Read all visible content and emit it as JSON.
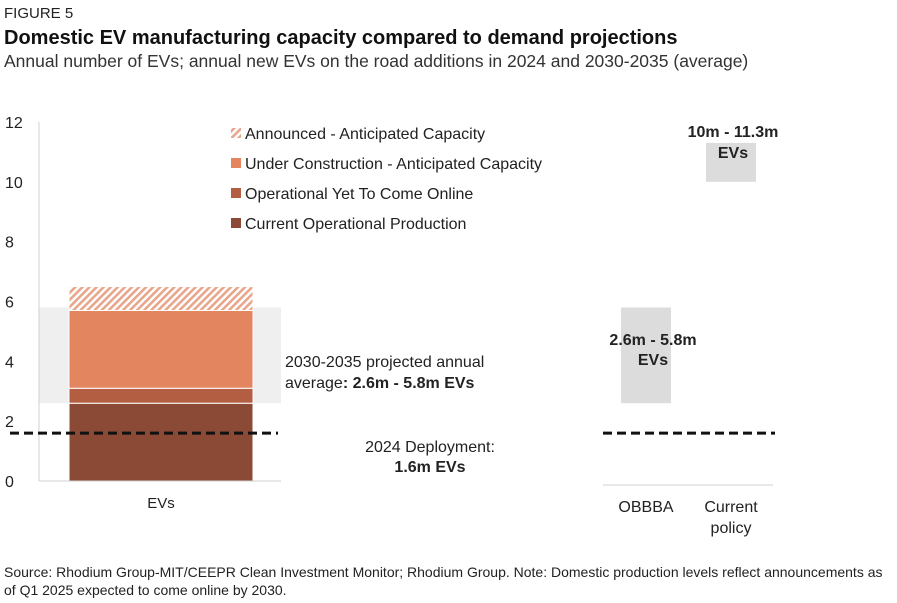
{
  "figure_label": "FIGURE 5",
  "title": "Domestic EV manufacturing capacity compared to demand projections",
  "subtitle": "Annual number of EVs; annual new EVs on the road additions in 2024 and 2030-2035 (average)",
  "source": "Source: Rhodium Group-MIT/CEEPR Clean Investment Monitor; Rhodium Group. Note: Domestic production levels reflect announcements as of Q1 2025 expected to come online by 2030.",
  "colors": {
    "current": "#8b4a36",
    "yet_to_come": "#b35e42",
    "under_construction": "#e3855f",
    "announced": "#e8a68c",
    "band": "#efefef",
    "range_box": "#dcdcdc"
  },
  "chart_data": [
    {
      "type": "bar",
      "stacked": true,
      "categories": [
        "EVs"
      ],
      "ylim": [
        0,
        12
      ],
      "yticks": [
        0,
        2,
        4,
        6,
        8,
        10,
        12
      ],
      "ytick_labels": [
        "0",
        "2",
        "4",
        "6",
        "8",
        "10",
        "12"
      ],
      "grid": false,
      "legend_position": "top-right",
      "series": [
        {
          "name": "Current Operational Production",
          "values": [
            2.6
          ],
          "color": "#8b4a36"
        },
        {
          "name": "Operational Yet To Come Online",
          "values": [
            0.5
          ],
          "color": "#b35e42"
        },
        {
          "name": "Under Construction - Anticipated Capacity",
          "values": [
            2.6
          ],
          "color": "#e3855f"
        },
        {
          "name": "Announced - Anticipated Capacity",
          "values": [
            0.8
          ],
          "color": "#e8a68c",
          "pattern": "hatched"
        }
      ],
      "legend_order": [
        "Announced - Anticipated Capacity",
        "Under Construction - Anticipated Capacity",
        "Operational Yet To Come Online",
        "Current Operational Production"
      ],
      "projected_band": {
        "low": 2.6,
        "high": 5.8
      },
      "band_annotation": {
        "line1": "2030-2035 projected annual",
        "line2_prefix": "average",
        "line2_bold": ": 2.6m - 5.8m EVs"
      },
      "deployment_2024": {
        "value": 1.6
      },
      "deployment_annotation": {
        "line1": "2024 Deployment:",
        "line2": "1.6m EVs"
      }
    },
    {
      "type": "bar",
      "categories": [
        "OBBBA",
        "Current policy"
      ],
      "category_labels": [
        [
          "OBBBA"
        ],
        [
          "Current",
          "policy"
        ]
      ],
      "ylim": [
        0,
        12
      ],
      "ranges": [
        {
          "category": "OBBBA",
          "low": 2.6,
          "high": 5.8,
          "label_line1": "2.6m - 5.8m",
          "label_line2": "EVs"
        },
        {
          "category": "Current policy",
          "low": 10.0,
          "high": 11.3,
          "label_line1": "10m - 11.3m",
          "label_line2": "EVs"
        }
      ],
      "deployment_2024": {
        "value": 1.6
      }
    }
  ]
}
